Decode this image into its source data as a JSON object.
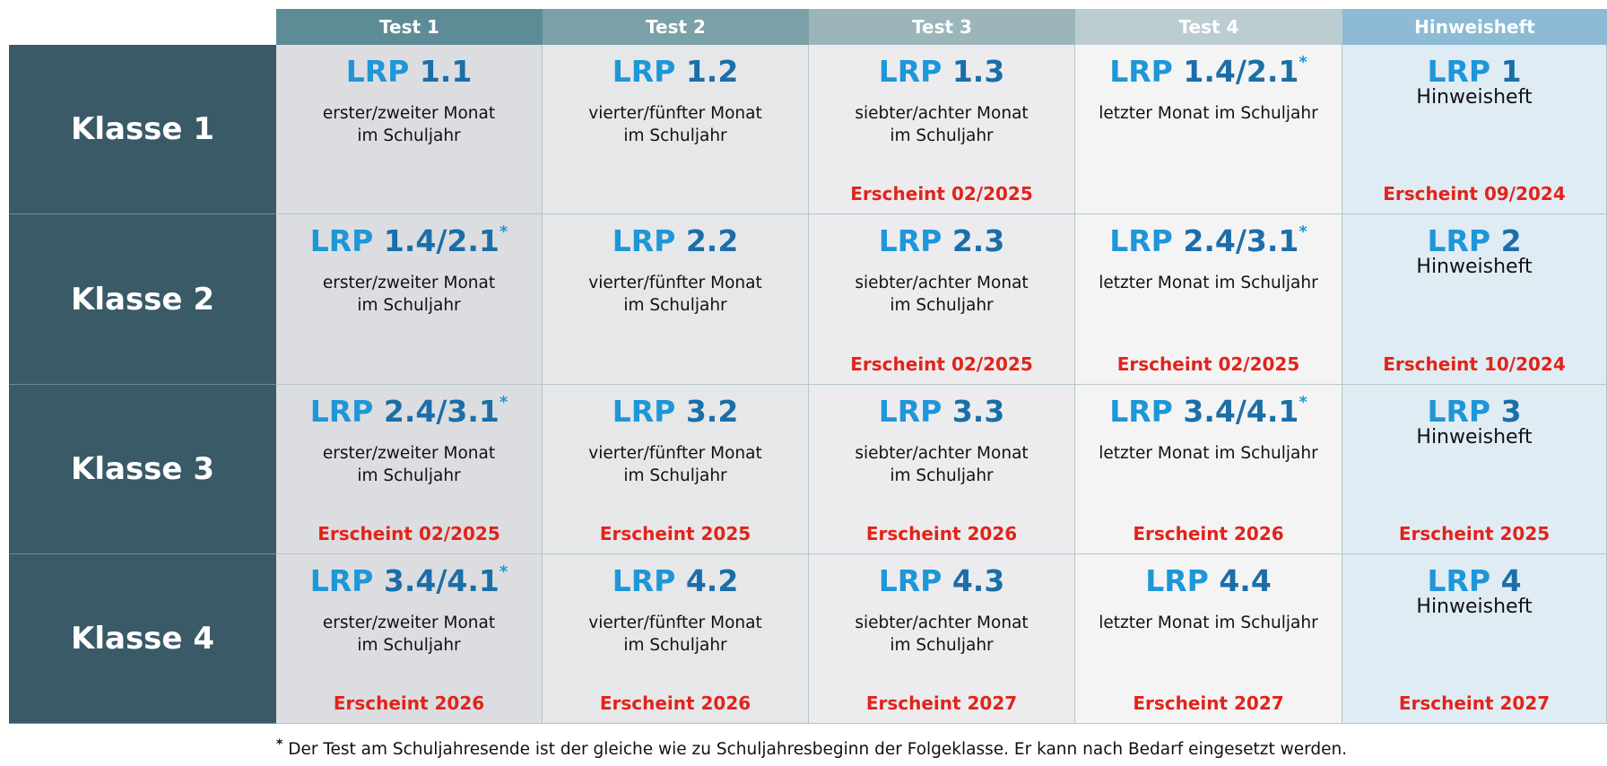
{
  "header": [
    "Test 1",
    "Test 2",
    "Test 3",
    "Test 4",
    "Hinweisheft"
  ],
  "rows": [
    {
      "label": "Klasse 1",
      "cells": [
        {
          "prefix": "LRP",
          "code": "1.1",
          "timing": [
            "erster/zweiter Monat",
            "im Schuljahr"
          ]
        },
        {
          "prefix": "LRP",
          "code": "1.2",
          "timing": [
            "vierter/fünfter Monat",
            "im Schuljahr"
          ]
        },
        {
          "prefix": "LRP",
          "code": "1.3",
          "timing": [
            "siebter/achter Monat",
            "im Schuljahr"
          ],
          "release": "Erscheint 02/2025"
        },
        {
          "prefix": "LRP",
          "code": "1.4/2.1",
          "note": "*",
          "timing": [
            "letzter Monat im Schuljahr"
          ]
        },
        {
          "prefix": "LRP",
          "code": "1",
          "subtitle": "Hinweisheft",
          "release": "Erscheint 09/2024"
        }
      ]
    },
    {
      "label": "Klasse 2",
      "cells": [
        {
          "prefix": "LRP",
          "code": "1.4/2.1",
          "note": "*",
          "timing": [
            "erster/zweiter Monat",
            "im Schuljahr"
          ]
        },
        {
          "prefix": "LRP",
          "code": "2.2",
          "timing": [
            "vierter/fünfter Monat",
            "im Schuljahr"
          ]
        },
        {
          "prefix": "LRP",
          "code": "2.3",
          "timing": [
            "siebter/achter Monat",
            "im Schuljahr"
          ],
          "release": "Erscheint 02/2025"
        },
        {
          "prefix": "LRP",
          "code": "2.4/3.1",
          "note": "*",
          "timing": [
            "letzter Monat im Schuljahr"
          ],
          "release": "Erscheint 02/2025"
        },
        {
          "prefix": "LRP",
          "code": "2",
          "subtitle": "Hinweisheft",
          "release": "Erscheint 10/2024"
        }
      ]
    },
    {
      "label": "Klasse 3",
      "cells": [
        {
          "prefix": "LRP",
          "code": "2.4/3.1",
          "note": "*",
          "timing": [
            "erster/zweiter Monat",
            "im Schuljahr"
          ],
          "release": "Erscheint 02/2025"
        },
        {
          "prefix": "LRP",
          "code": "3.2",
          "timing": [
            "vierter/fünfter Monat",
            "im Schuljahr"
          ],
          "release": "Erscheint 2025"
        },
        {
          "prefix": "LRP",
          "code": "3.3",
          "timing": [
            "siebter/achter Monat",
            "im Schuljahr"
          ],
          "release": "Erscheint 2026"
        },
        {
          "prefix": "LRP",
          "code": "3.4/4.1",
          "note": "*",
          "timing": [
            "letzter Monat im Schuljahr"
          ],
          "release": "Erscheint 2026"
        },
        {
          "prefix": "LRP",
          "code": "3",
          "subtitle": "Hinweisheft",
          "release": "Erscheint 2025"
        }
      ]
    },
    {
      "label": "Klasse 4",
      "cells": [
        {
          "prefix": "LRP",
          "code": "3.4/4.1",
          "note": "*",
          "timing": [
            "erster/zweiter Monat",
            "im Schuljahr"
          ],
          "release": "Erscheint 2026"
        },
        {
          "prefix": "LRP",
          "code": "4.2",
          "timing": [
            "vierter/fünfter Monat",
            "im Schuljahr"
          ],
          "release": "Erscheint 2026"
        },
        {
          "prefix": "LRP",
          "code": "4.3",
          "timing": [
            "siebter/achter Monat",
            "im Schuljahr"
          ],
          "release": "Erscheint 2027"
        },
        {
          "prefix": "LRP",
          "code": "4.4",
          "timing": [
            "letzter Monat im Schuljahr"
          ],
          "release": "Erscheint 2027"
        },
        {
          "prefix": "LRP",
          "code": "4",
          "subtitle": "Hinweisheft",
          "release": "Erscheint 2027"
        }
      ]
    }
  ],
  "footnote": {
    "mark": "*",
    "text": "Der Test am Schuljahresende ist der gleiche wie zu Schuljahresbeginn der Folgeklasse. Er kann nach Bedarf eingesetzt werden."
  }
}
